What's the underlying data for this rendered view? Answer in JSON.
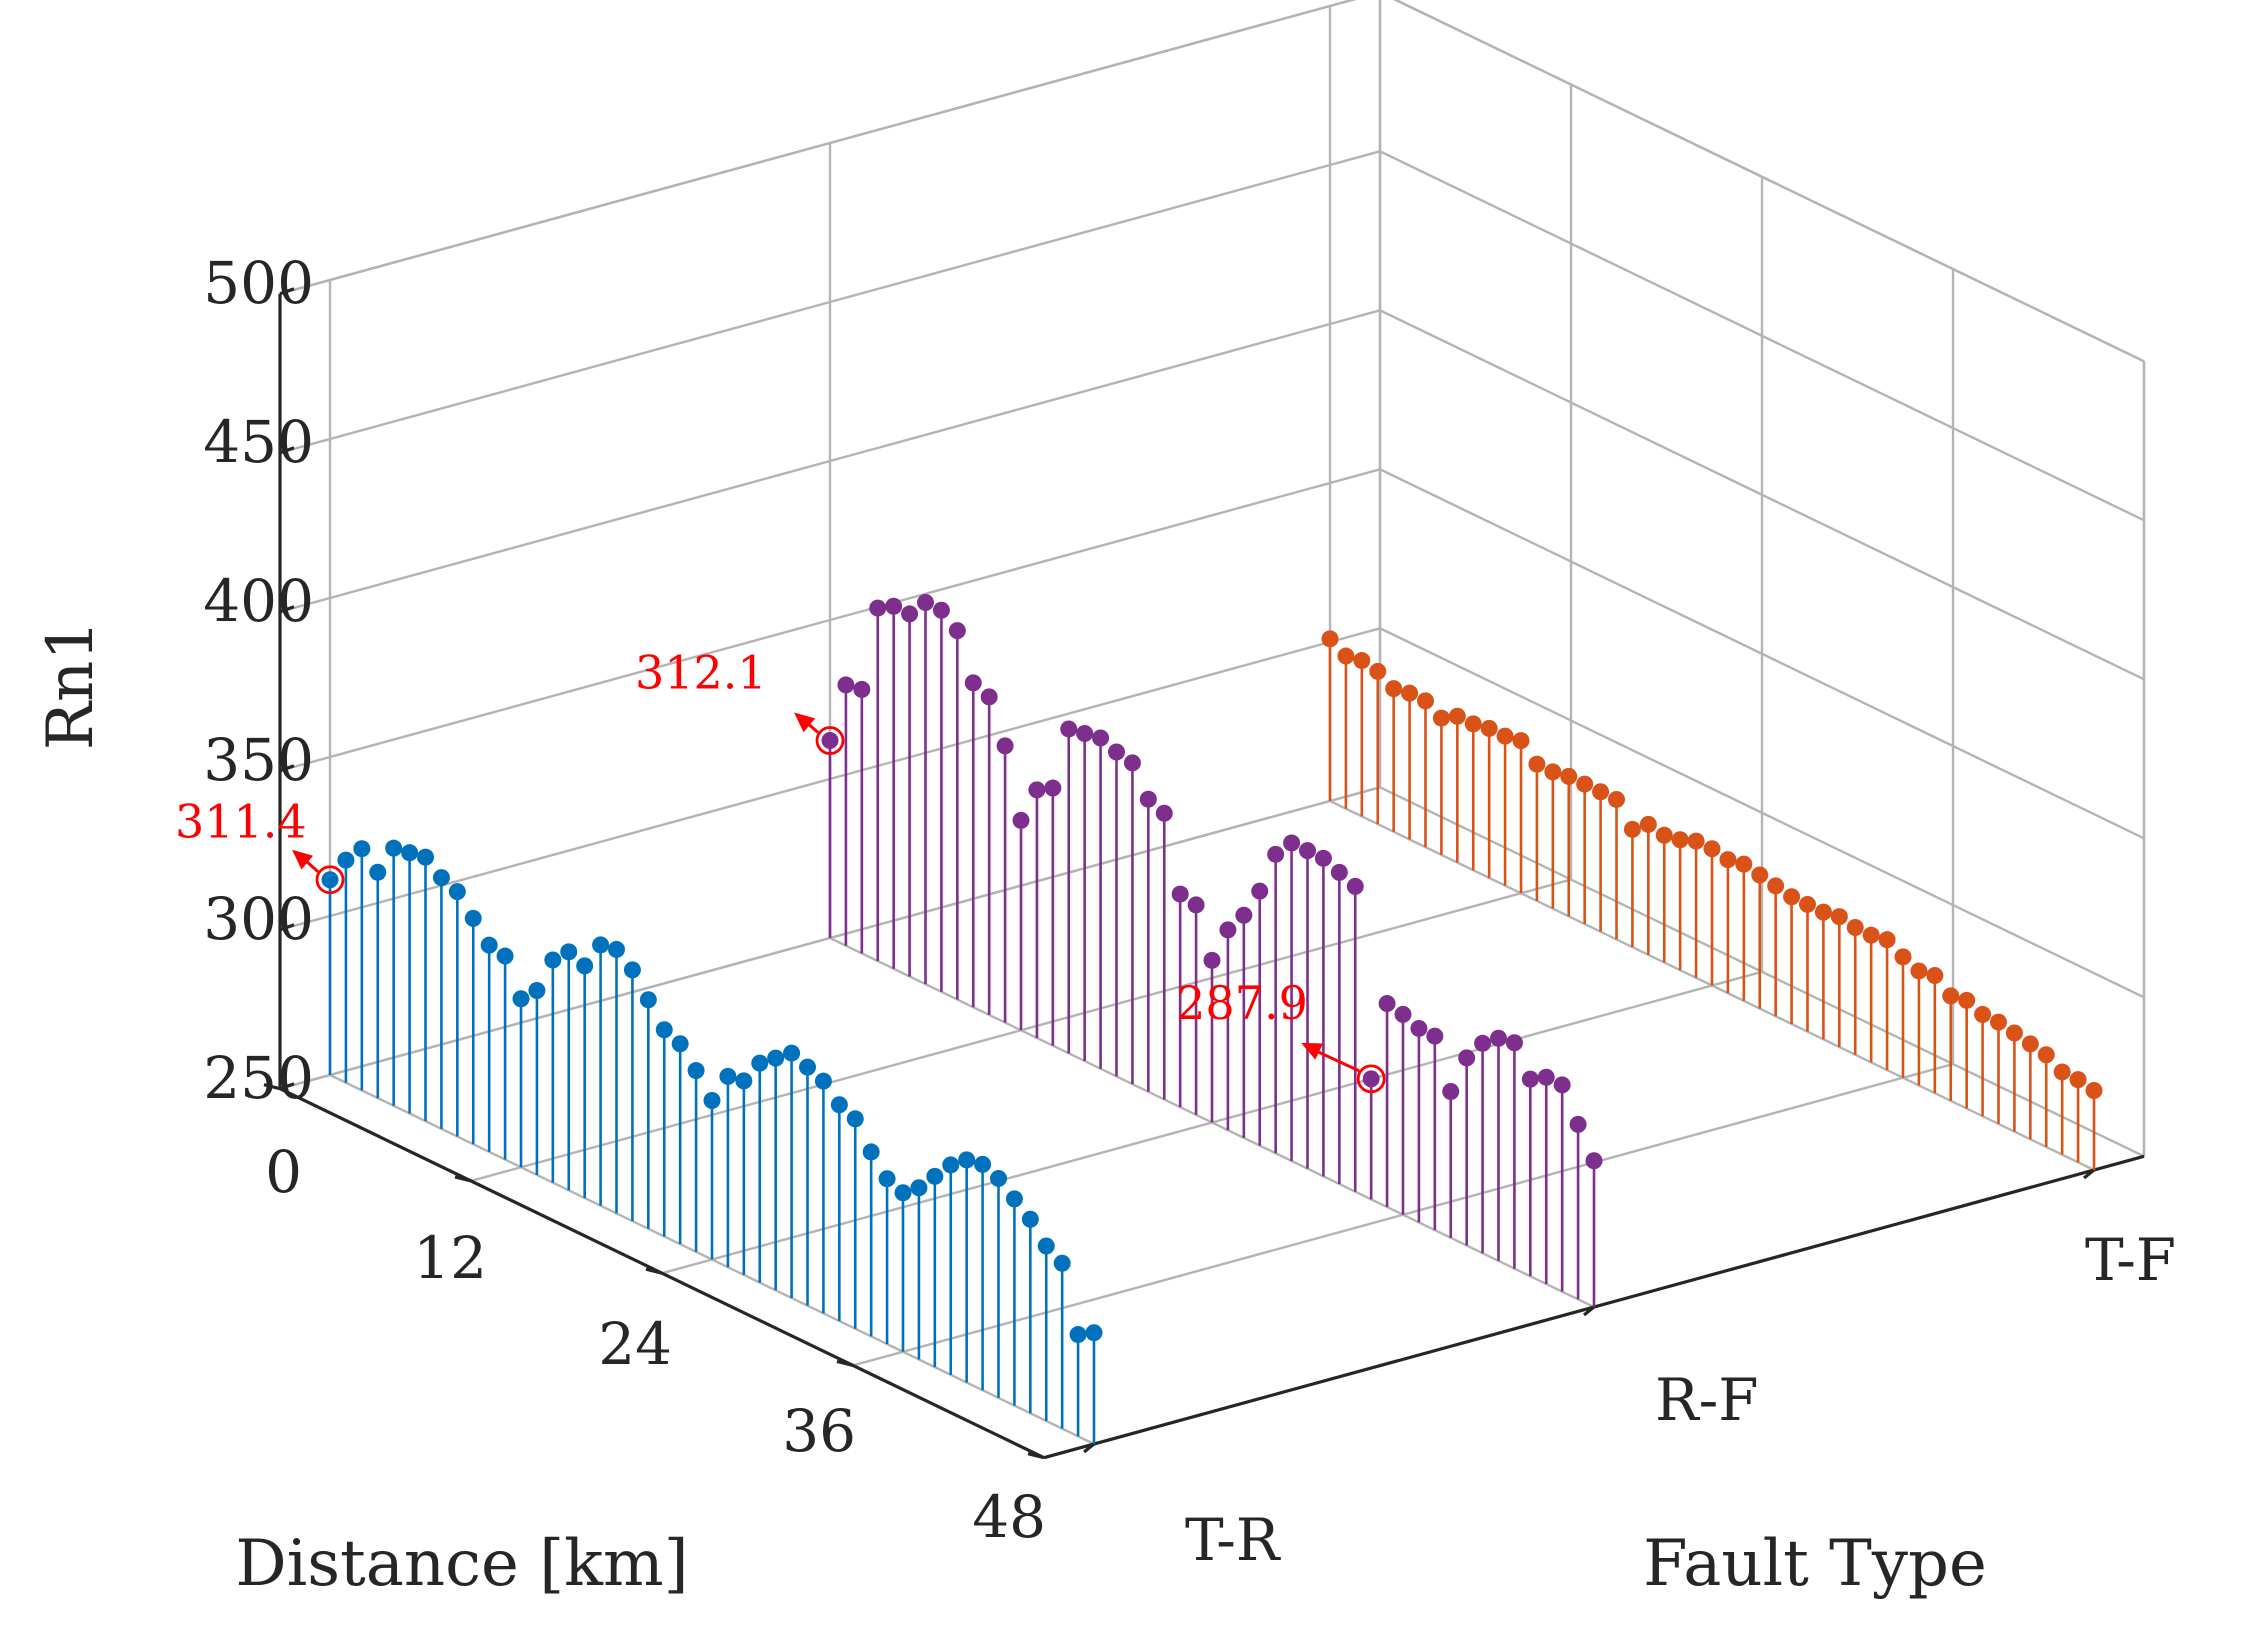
{
  "chart_data": {
    "type": "stem3",
    "zlabel": "Rn1",
    "xlabel": "Distance [km]",
    "ylabel": "Fault Type",
    "zlim": [
      250,
      500
    ],
    "zticks": [
      "250",
      "300",
      "350",
      "400",
      "450",
      "500"
    ],
    "xlim": [
      0,
      48
    ],
    "xticks": [
      "0",
      "12",
      "24",
      "36",
      "48"
    ],
    "categories": [
      "T-R",
      "R-F",
      "T-F"
    ],
    "grid": true,
    "series": [
      {
        "name": "T-R",
        "color": "#0072bd",
        "x": [
          0,
          1,
          2,
          3,
          4,
          5,
          6,
          7,
          8,
          9,
          10,
          11,
          12,
          13,
          14,
          15,
          16,
          17,
          18,
          19,
          20,
          21,
          22,
          23,
          24,
          25,
          26,
          27,
          28,
          29,
          30,
          31,
          32,
          33,
          34,
          35,
          36,
          37,
          38,
          39,
          40,
          41,
          42,
          43,
          44,
          45,
          46,
          47,
          48
        ],
        "values": [
          311.4,
          320,
          326,
          321,
          331,
          332,
          333,
          329,
          327,
          321,
          315,
          314,
          303,
          308,
          320,
          325,
          323,
          332,
          333,
          329,
          322,
          315,
          313,
          307,
          300,
          310,
          311,
          319,
          323,
          327,
          325,
          323,
          318,
          316,
          308,
          302,
          300,
          304,
          310,
          316,
          320,
          321,
          319,
          315,
          311,
          305,
          302,
          282,
          285
        ]
      },
      {
        "name": "R-F",
        "color": "#7e2f8e",
        "x": [
          0,
          1,
          2,
          3,
          4,
          5,
          6,
          7,
          8,
          9,
          10,
          11,
          12,
          13,
          14,
          15,
          16,
          17,
          18,
          19,
          20,
          21,
          22,
          23,
          24,
          25,
          26,
          27,
          28,
          29,
          30,
          31,
          32,
          33,
          34,
          35,
          36,
          37,
          38,
          39,
          40,
          41,
          42,
          43,
          44,
          45,
          46,
          47,
          48
        ],
        "values": [
          312.1,
          332,
          333,
          361,
          364,
          364,
          370,
          370,
          366,
          352,
          350,
          337,
          316,
          328,
          331,
          352,
          353,
          354,
          352,
          351,
          342,
          340,
          317,
          316,
          301,
          313,
          320,
          330,
          344,
          350,
          350,
          350,
          348,
          346,
          287.9,
          314,
          313,
          311,
          311,
          296,
          309,
          316,
          320,
          321,
          312,
          315,
          315,
          305,
          296
        ]
      },
      {
        "name": "T-F",
        "color": "#d95319",
        "x": [
          0,
          1,
          2,
          3,
          4,
          5,
          6,
          7,
          8,
          9,
          10,
          11,
          12,
          13,
          14,
          15,
          16,
          17,
          18,
          19,
          20,
          21,
          22,
          23,
          24,
          25,
          26,
          27,
          28,
          29,
          30,
          31,
          32,
          33,
          34,
          35,
          36,
          37,
          38,
          39,
          40,
          41,
          42,
          43,
          44,
          45,
          46,
          47,
          48
        ],
        "values": [
          301,
          298,
          299,
          298,
          295,
          296,
          296,
          293,
          296,
          296,
          297,
          297,
          298,
          293,
          293,
          294,
          294,
          294,
          294,
          287,
          291,
          290,
          291,
          293,
          293,
          292,
          293,
          292,
          291,
          290,
          290,
          290,
          291,
          290,
          290,
          291,
          288,
          286,
          287,
          283,
          284,
          282,
          282,
          281,
          280,
          279,
          276,
          276,
          275
        ]
      }
    ],
    "annotations": [
      {
        "label": "311.4",
        "series": "T-R",
        "x": 0
      },
      {
        "label": "312.1",
        "series": "R-F",
        "x": 0
      },
      {
        "label": "287.9",
        "series": "R-F",
        "x": 34
      }
    ]
  }
}
